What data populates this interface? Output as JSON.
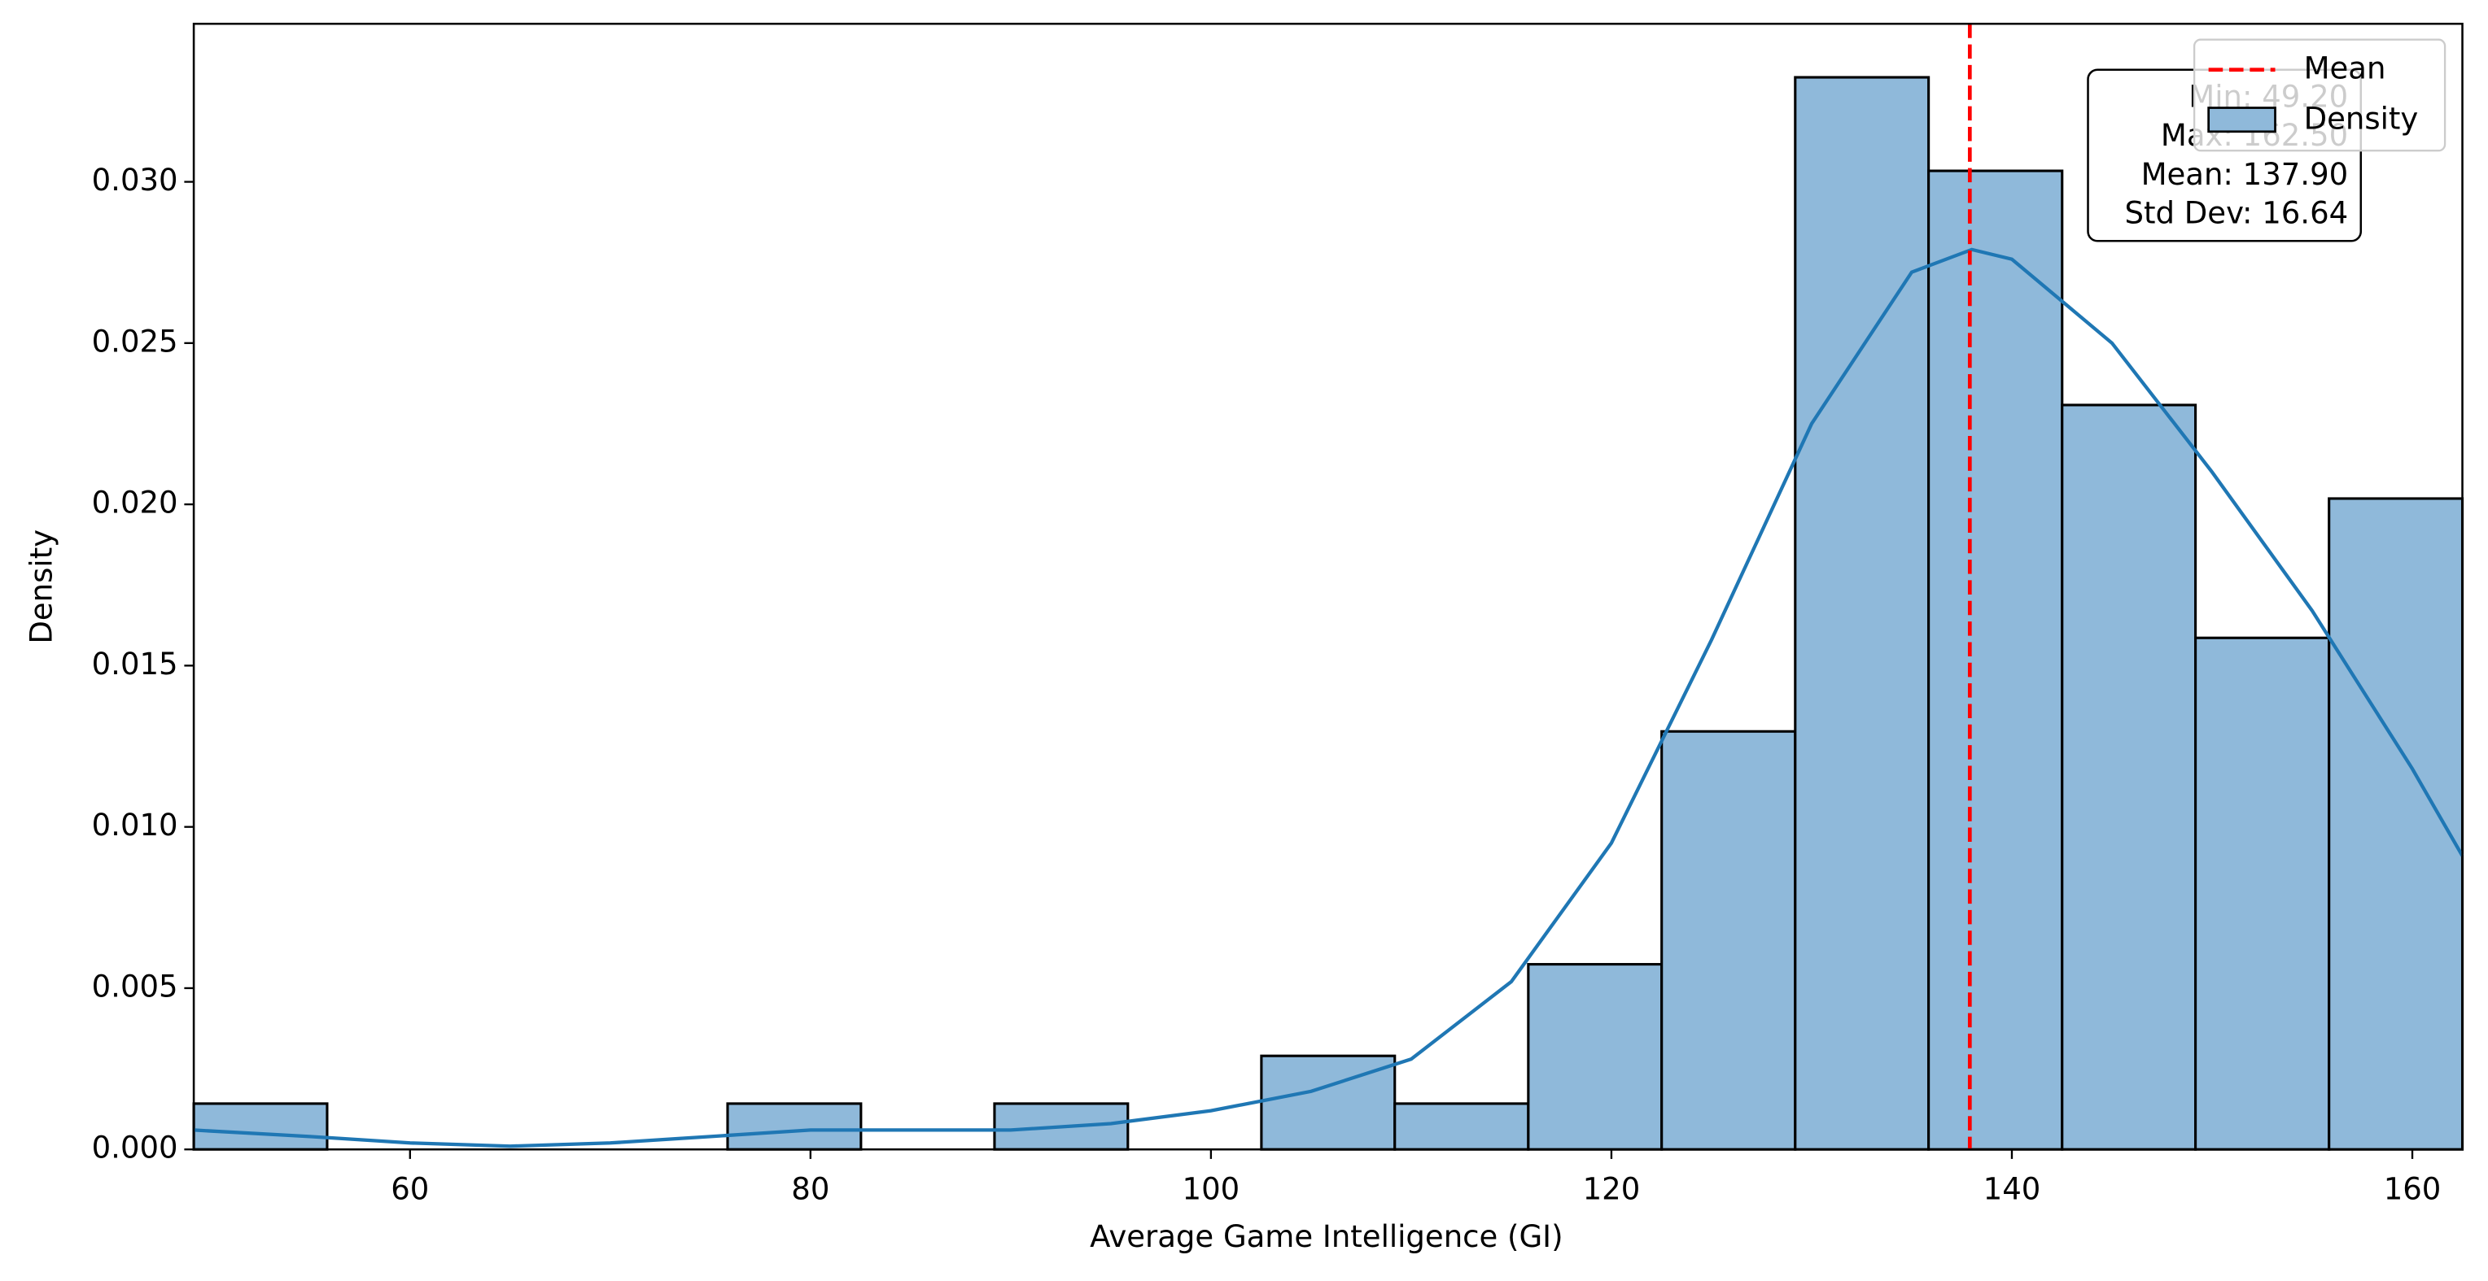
{
  "chart_data": {
    "type": "histogram",
    "x_label": "Average Game Intelligence (GI)",
    "y_label": "Density",
    "bins": [
      49.2,
      55.86,
      62.53,
      69.19,
      75.86,
      82.52,
      89.19,
      95.85,
      102.52,
      109.18,
      115.85,
      122.51,
      129.18,
      135.84,
      142.51,
      149.17,
      155.84,
      162.5
    ],
    "values": [
      0.00142,
      0,
      0,
      0,
      0.00142,
      0,
      0.00142,
      0,
      0.0029,
      0.00142,
      0.00574,
      0.01296,
      0.03324,
      0.03034,
      0.02308,
      0.01586,
      0.02018
    ],
    "name": "Density",
    "color": "#8fb9da",
    "edgecolor": "#000000",
    "kde": {
      "color": "#1f77b4",
      "x": [
        49.2,
        55,
        60,
        65,
        70,
        75,
        80,
        85,
        90,
        95,
        100,
        105,
        110,
        115,
        120,
        125,
        130,
        135,
        138,
        140,
        145,
        150,
        155,
        160,
        162.5
      ],
      "values": [
        0.0006,
        0.0004,
        0.0002,
        0.0001,
        0.0002,
        0.0004,
        0.0006,
        0.0006,
        0.0006,
        0.0008,
        0.0012,
        0.0018,
        0.0028,
        0.0052,
        0.0095,
        0.0158,
        0.0225,
        0.0272,
        0.0279,
        0.0276,
        0.025,
        0.021,
        0.0167,
        0.0118,
        0.0091
      ]
    },
    "mean_line": {
      "name": "Mean",
      "value": 137.9,
      "color": "#ff0000"
    },
    "annotation": [
      "Min: 49.20",
      "Max: 162.50",
      "Mean: 137.90",
      "Std Dev: 16.64"
    ],
    "xlim": [
      49.2,
      162.5
    ],
    "ylim": [
      0,
      0.0349
    ],
    "xticks": [
      60,
      80,
      100,
      120,
      140,
      160
    ],
    "yticks": [
      {
        "value": 0,
        "label": "0.000"
      },
      0.005,
      {
        "value": 0.01,
        "label": "0.010"
      },
      0.015,
      {
        "value": 0.02,
        "label": "0.020"
      },
      0.025,
      {
        "value": 0.03,
        "label": "0.030"
      }
    ],
    "grid": false,
    "legend": "upper right"
  }
}
